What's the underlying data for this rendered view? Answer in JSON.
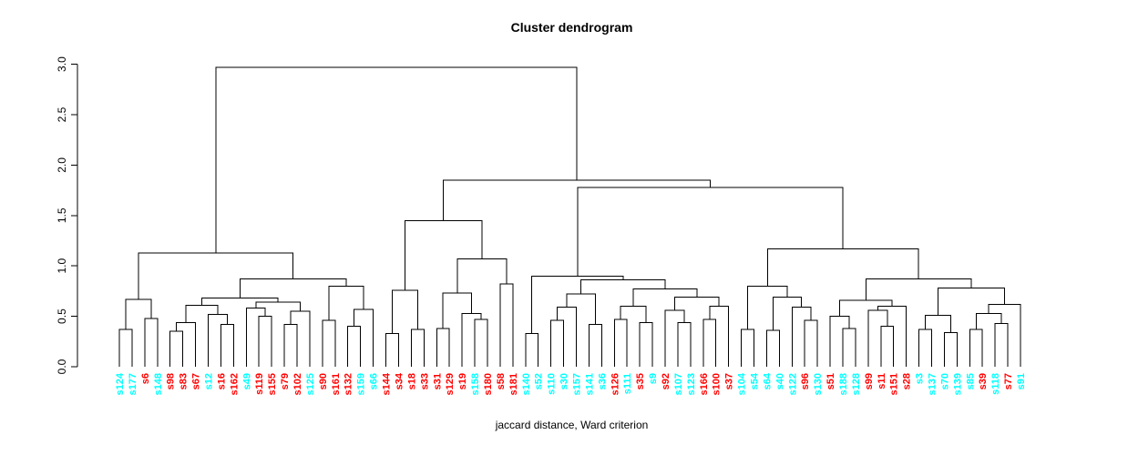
{
  "chart_data": {
    "type": "dendrogram",
    "title": "Cluster dendrogram",
    "xlabel": "jaccard distance, Ward criterion",
    "ylabel": "",
    "y_axis": {
      "ticks": [
        {
          "value": 0.0,
          "label": "0.0"
        },
        {
          "value": 0.5,
          "label": "0.5"
        },
        {
          "value": 1.0,
          "label": "1.0"
        },
        {
          "value": 1.5,
          "label": "1.5"
        },
        {
          "value": 2.0,
          "label": "2.0"
        },
        {
          "value": 2.5,
          "label": "2.5"
        },
        {
          "value": 3.0,
          "label": "3.0"
        }
      ],
      "range": [
        0.0,
        3.0
      ]
    },
    "colors": {
      "r": "#FF0000",
      "c": "#00FFFF",
      "line": "#000000",
      "background": "#FFFFFF",
      "text": "#000000"
    },
    "leaves": [
      [
        "s124",
        "c"
      ],
      [
        "s177",
        "c"
      ],
      [
        "s6",
        "r"
      ],
      [
        "s148",
        "c"
      ],
      [
        "s98",
        "r"
      ],
      [
        "s83",
        "r"
      ],
      [
        "s67",
        "r"
      ],
      [
        "s12",
        "c"
      ],
      [
        "s16",
        "r"
      ],
      [
        "s162",
        "r"
      ],
      [
        "s49",
        "c"
      ],
      [
        "s119",
        "r"
      ],
      [
        "s155",
        "r"
      ],
      [
        "s79",
        "r"
      ],
      [
        "s102",
        "r"
      ],
      [
        "s125",
        "c"
      ],
      [
        "s90",
        "r"
      ],
      [
        "s161",
        "r"
      ],
      [
        "s132",
        "r"
      ],
      [
        "s159",
        "c"
      ],
      [
        "s66",
        "c"
      ],
      [
        "s144",
        "r"
      ],
      [
        "s34",
        "r"
      ],
      [
        "s18",
        "r"
      ],
      [
        "s33",
        "r"
      ],
      [
        "s31",
        "r"
      ],
      [
        "s129",
        "r"
      ],
      [
        "s19",
        "r"
      ],
      [
        "s158",
        "c"
      ],
      [
        "s180",
        "r"
      ],
      [
        "s58",
        "r"
      ],
      [
        "s181",
        "r"
      ],
      [
        "s140",
        "c"
      ],
      [
        "s52",
        "c"
      ],
      [
        "s110",
        "c"
      ],
      [
        "s30",
        "c"
      ],
      [
        "s157",
        "c"
      ],
      [
        "s141",
        "c"
      ],
      [
        "s36",
        "c"
      ],
      [
        "s126",
        "r"
      ],
      [
        "s111",
        "c"
      ],
      [
        "s35",
        "r"
      ],
      [
        "s9",
        "c"
      ],
      [
        "s92",
        "r"
      ],
      [
        "s107",
        "c"
      ],
      [
        "s123",
        "c"
      ],
      [
        "s166",
        "r"
      ],
      [
        "s100",
        "r"
      ],
      [
        "s37",
        "r"
      ],
      [
        "s104",
        "c"
      ],
      [
        "s54",
        "c"
      ],
      [
        "s64",
        "c"
      ],
      [
        "s40",
        "c"
      ],
      [
        "s122",
        "c"
      ],
      [
        "s96",
        "r"
      ],
      [
        "s130",
        "c"
      ],
      [
        "s51",
        "r"
      ],
      [
        "s188",
        "c"
      ],
      [
        "s128",
        "c"
      ],
      [
        "s99",
        "r"
      ],
      [
        "s11",
        "r"
      ],
      [
        "s151",
        "r"
      ],
      [
        "s28",
        "r"
      ],
      [
        "s3",
        "c"
      ],
      [
        "s137",
        "c"
      ],
      [
        "s70",
        "c"
      ],
      [
        "s139",
        "c"
      ],
      [
        "s85",
        "c"
      ],
      [
        "s39",
        "r"
      ],
      [
        "s118",
        "c"
      ],
      [
        "s77",
        "r"
      ],
      [
        "s91",
        "c"
      ]
    ],
    "tree": {
      "h": 2.97,
      "c": [
        {
          "h": 1.13,
          "c": [
            {
              "h": 0.67,
              "c": [
                {
                  "h": 0.37,
                  "c": [
                    "s124",
                    "s177"
                  ]
                },
                {
                  "h": 0.48,
                  "c": [
                    "s6",
                    "s148"
                  ]
                }
              ]
            },
            {
              "h": 0.87,
              "c": [
                {
                  "h": 0.68,
                  "c": [
                    {
                      "h": 0.61,
                      "c": [
                        {
                          "h": 0.44,
                          "c": [
                            {
                              "h": 0.35,
                              "c": [
                                "s98",
                                "s83"
                              ]
                            },
                            "s67"
                          ]
                        },
                        {
                          "h": 0.52,
                          "c": [
                            "s12",
                            {
                              "h": 0.42,
                              "c": [
                                "s16",
                                "s162"
                              ]
                            }
                          ]
                        }
                      ]
                    },
                    {
                      "h": 0.64,
                      "c": [
                        {
                          "h": 0.58,
                          "c": [
                            "s49",
                            {
                              "h": 0.5,
                              "c": [
                                "s119",
                                "s155"
                              ]
                            }
                          ]
                        },
                        {
                          "h": 0.55,
                          "c": [
                            {
                              "h": 0.42,
                              "c": [
                                "s79",
                                "s102"
                              ]
                            },
                            "s125"
                          ]
                        }
                      ]
                    }
                  ]
                },
                {
                  "h": 0.8,
                  "c": [
                    {
                      "h": 0.46,
                      "c": [
                        "s90",
                        "s161"
                      ]
                    },
                    {
                      "h": 0.57,
                      "c": [
                        {
                          "h": 0.4,
                          "c": [
                            "s132",
                            "s159"
                          ]
                        },
                        "s66"
                      ]
                    }
                  ]
                }
              ]
            }
          ]
        },
        {
          "h": 1.85,
          "c": [
            {
              "h": 1.45,
              "c": [
                {
                  "h": 0.76,
                  "c": [
                    {
                      "h": 0.33,
                      "c": [
                        "s144",
                        "s34"
                      ]
                    },
                    {
                      "h": 0.37,
                      "c": [
                        "s18",
                        "s33"
                      ]
                    }
                  ]
                },
                {
                  "h": 1.07,
                  "c": [
                    {
                      "h": 0.73,
                      "c": [
                        {
                          "h": 0.38,
                          "c": [
                            "s31",
                            "s129"
                          ]
                        },
                        {
                          "h": 0.53,
                          "c": [
                            "s19",
                            {
                              "h": 0.47,
                              "c": [
                                "s158",
                                "s180"
                              ]
                            }
                          ]
                        }
                      ]
                    },
                    {
                      "h": 0.82,
                      "c": [
                        "s58",
                        "s181"
                      ]
                    }
                  ]
                }
              ]
            },
            {
              "h": 1.78,
              "c": [
                {
                  "h": 0.9,
                  "c": [
                    {
                      "h": 0.33,
                      "c": [
                        "s140",
                        "s52"
                      ]
                    },
                    {
                      "h": 0.86,
                      "c": [
                        {
                          "h": 0.72,
                          "c": [
                            {
                              "h": 0.59,
                              "c": [
                                {
                                  "h": 0.46,
                                  "c": [
                                    "s110",
                                    "s30"
                                  ]
                                },
                                "s157"
                              ]
                            },
                            {
                              "h": 0.42,
                              "c": [
                                "s141",
                                "s36"
                              ]
                            }
                          ]
                        },
                        {
                          "h": 0.77,
                          "c": [
                            {
                              "h": 0.6,
                              "c": [
                                {
                                  "h": 0.47,
                                  "c": [
                                    "s126",
                                    "s111"
                                  ]
                                },
                                {
                                  "h": 0.44,
                                  "c": [
                                    "s35",
                                    "s9"
                                  ]
                                }
                              ]
                            },
                            {
                              "h": 0.69,
                              "c": [
                                {
                                  "h": 0.56,
                                  "c": [
                                    "s92",
                                    {
                                      "h": 0.44,
                                      "c": [
                                        "s107",
                                        "s123"
                                      ]
                                    }
                                  ]
                                },
                                {
                                  "h": 0.6,
                                  "c": [
                                    {
                                      "h": 0.47,
                                      "c": [
                                        "s166",
                                        "s100"
                                      ]
                                    },
                                    "s37"
                                  ]
                                }
                              ]
                            }
                          ]
                        }
                      ]
                    }
                  ]
                },
                {
                  "h": 1.17,
                  "c": [
                    {
                      "h": 0.8,
                      "c": [
                        {
                          "h": 0.37,
                          "c": [
                            "s104",
                            "s54"
                          ]
                        },
                        {
                          "h": 0.69,
                          "c": [
                            {
                              "h": 0.36,
                              "c": [
                                "s64",
                                "s40"
                              ]
                            },
                            {
                              "h": 0.59,
                              "c": [
                                "s122",
                                {
                                  "h": 0.46,
                                  "c": [
                                    "s96",
                                    "s130"
                                  ]
                                }
                              ]
                            }
                          ]
                        }
                      ]
                    },
                    {
                      "h": 0.87,
                      "c": [
                        {
                          "h": 0.66,
                          "c": [
                            {
                              "h": 0.5,
                              "c": [
                                "s51",
                                {
                                  "h": 0.38,
                                  "c": [
                                    "s188",
                                    "s128"
                                  ]
                                }
                              ]
                            },
                            {
                              "h": 0.6,
                              "c": [
                                {
                                  "h": 0.56,
                                  "c": [
                                    "s99",
                                    {
                                      "h": 0.4,
                                      "c": [
                                        "s11",
                                        "s151"
                                      ]
                                    }
                                  ]
                                },
                                "s28"
                              ]
                            }
                          ]
                        },
                        {
                          "h": 0.78,
                          "c": [
                            {
                              "h": 0.51,
                              "c": [
                                {
                                  "h": 0.37,
                                  "c": [
                                    "s3",
                                    "s137"
                                  ]
                                },
                                {
                                  "h": 0.34,
                                  "c": [
                                    "s70",
                                    "s139"
                                  ]
                                }
                              ]
                            },
                            {
                              "h": 0.62,
                              "c": [
                                {
                                  "h": 0.53,
                                  "c": [
                                    {
                                      "h": 0.37,
                                      "c": [
                                        "s85",
                                        "s39"
                                      ]
                                    },
                                    {
                                      "h": 0.43,
                                      "c": [
                                        "s118",
                                        "s77"
                                      ]
                                    }
                                  ]
                                },
                                "s91"
                              ]
                            }
                          ]
                        }
                      ]
                    }
                  ]
                }
              ]
            }
          ]
        }
      ]
    }
  }
}
